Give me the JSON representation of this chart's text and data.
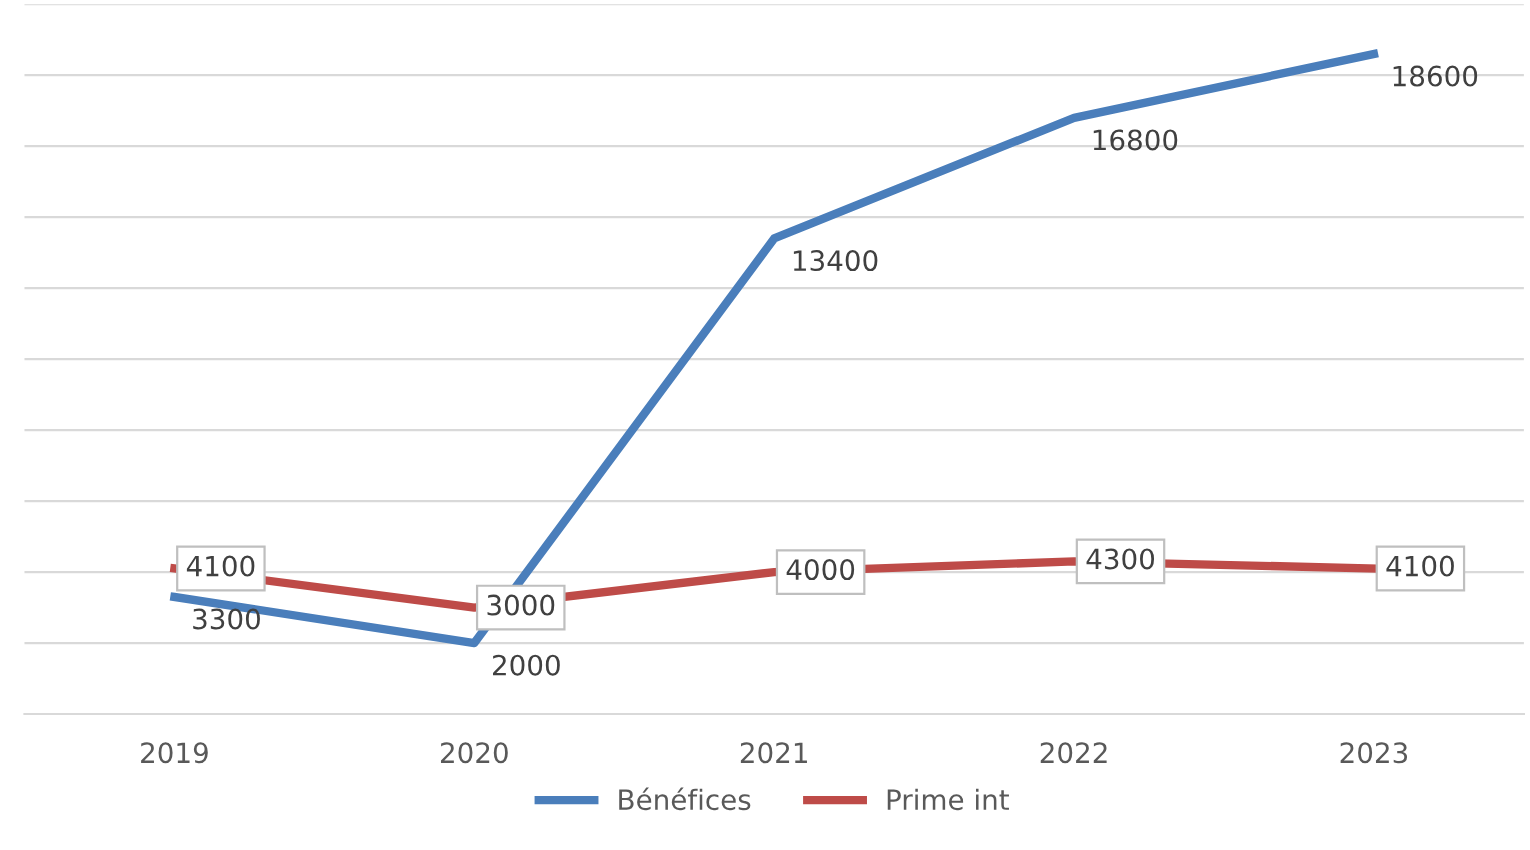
{
  "chart_data": {
    "type": "line",
    "categories": [
      "2019",
      "2020",
      "2021",
      "2022",
      "2023"
    ],
    "series": [
      {
        "name": "Bénéfices",
        "color": "#4a7ebb",
        "values": [
          3300,
          2000,
          13400,
          16800,
          18600
        ]
      },
      {
        "name": "Prime int",
        "color": "#be4b48",
        "values": [
          4100,
          3000,
          4000,
          4300,
          4100
        ]
      }
    ],
    "ylim": [
      0,
      20000
    ],
    "yticks": [
      {
        "value": 0,
        "label": null
      },
      {
        "value": 2000,
        "label": null
      },
      {
        "value": 4000,
        "label": null
      },
      {
        "value": 6000,
        "label": null
      },
      {
        "value": 8000,
        "label": null
      },
      {
        "value": 10000,
        "label": null
      },
      {
        "value": 12000,
        "label": null
      },
      {
        "value": 14000,
        "label": null
      },
      {
        "value": 16000,
        "label": null
      },
      {
        "value": 18000,
        "label": null
      },
      {
        "value": 20000,
        "label": null
      }
    ],
    "tick_labels": "x",
    "grid": "y",
    "legend": "bottom",
    "data_labels": true,
    "marker": "none",
    "line_style": "solid"
  }
}
